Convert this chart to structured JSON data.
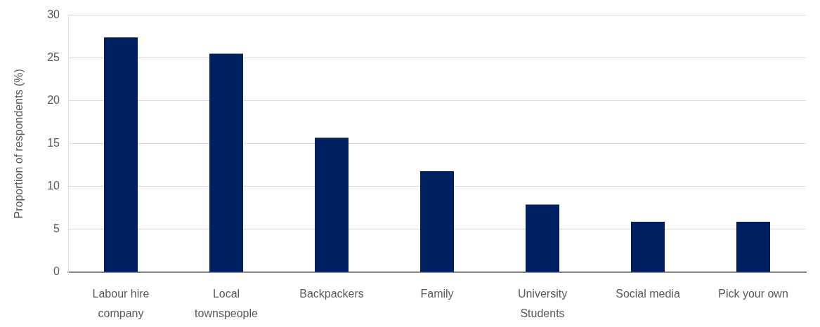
{
  "chart_data": {
    "type": "bar",
    "ylabel": "Proportion of respondents (%)",
    "categories": [
      "Labour hire company",
      "Local townspeople",
      "Backpackers",
      "Family",
      "University Students",
      "Social media",
      "Pick your own"
    ],
    "values": [
      27.4,
      25.5,
      15.7,
      11.8,
      7.9,
      5.9,
      5.9
    ],
    "color": "#002060",
    "ylim": [
      0,
      30
    ],
    "yticks": [
      0,
      5,
      10,
      15,
      20,
      25,
      30
    ],
    "grid": "y"
  }
}
